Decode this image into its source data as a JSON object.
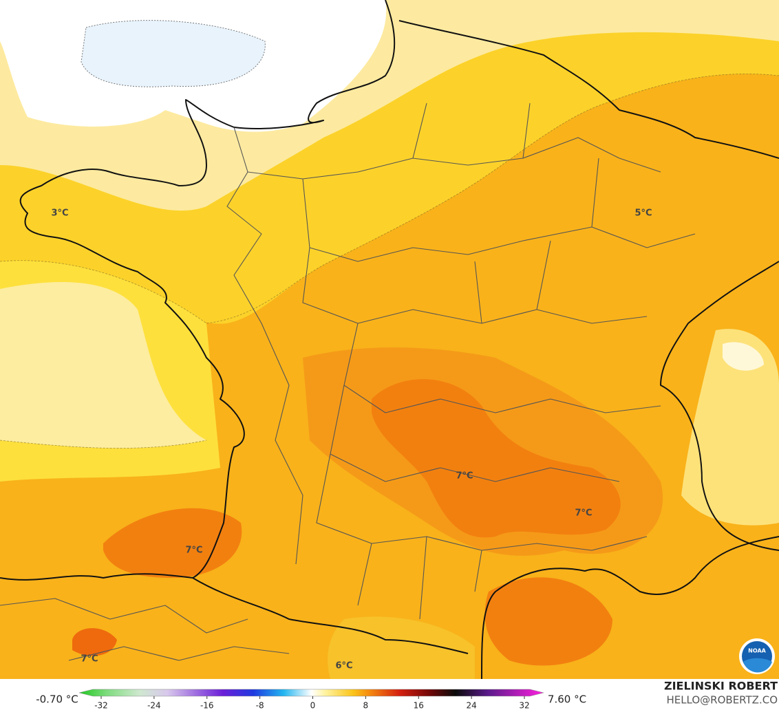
{
  "map": {
    "labels": [
      "3°C",
      "5°C",
      "7°C",
      "7°C",
      "7°C",
      "7°C",
      "6°C"
    ],
    "legend": {
      "min_label": "-0.70 °C",
      "max_label": "7.60 °C",
      "ticks": [
        -32,
        -24,
        -16,
        -8,
        0,
        8,
        16,
        24,
        32
      ]
    },
    "credit": {
      "name": "ZIELINSKI ROBERT",
      "contact": "HELLO@ROBERTZ.CO",
      "logo": "NOAA"
    }
  }
}
